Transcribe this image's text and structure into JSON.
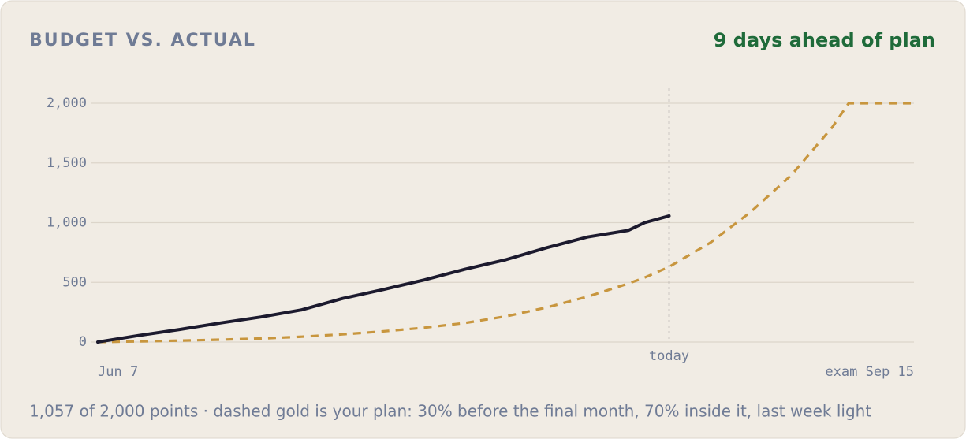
{
  "chart_data": {
    "type": "line",
    "title": "BUDGET VS. ACTUAL",
    "annotation": "9 days ahead of plan",
    "caption": "1,057 of 2,000 points · dashed gold is your plan: 30% before the final month, 70% inside it, last week light",
    "x": [
      0,
      5,
      10,
      15,
      20,
      25,
      30,
      35,
      40,
      45,
      50,
      55,
      60,
      65,
      67,
      70,
      75,
      80,
      85,
      90,
      92,
      95,
      100
    ],
    "xlim": [
      0,
      100
    ],
    "xticks": [
      {
        "value": 0,
        "label": "Jun 7"
      },
      {
        "value": 70,
        "label": "today"
      },
      {
        "value": 100,
        "label": "exam Sep 15"
      }
    ],
    "ylim": [
      0,
      2000
    ],
    "yticks": [
      0,
      500,
      {
        "value": 1000,
        "label": "1,000"
      },
      {
        "value": 1500,
        "label": "1,500"
      },
      {
        "value": 2000,
        "label": "2,000"
      }
    ],
    "grid": true,
    "series": [
      {
        "name": "actual",
        "color": "#1c1a2e",
        "style": "solid",
        "values": [
          0,
          55,
          105,
          160,
          210,
          270,
          365,
          440,
          520,
          610,
          690,
          790,
          880,
          935,
          1000,
          1057,
          null,
          null,
          null,
          null,
          null,
          null,
          null
        ]
      },
      {
        "name": "plan",
        "color": "#c8963e",
        "style": "dashed",
        "values": [
          0,
          5,
          12,
          20,
          30,
          45,
          65,
          90,
          120,
          160,
          215,
          290,
          380,
          490,
          540,
          630,
          830,
          1090,
          1400,
          1800,
          2000,
          2000,
          2000
        ]
      }
    ]
  }
}
